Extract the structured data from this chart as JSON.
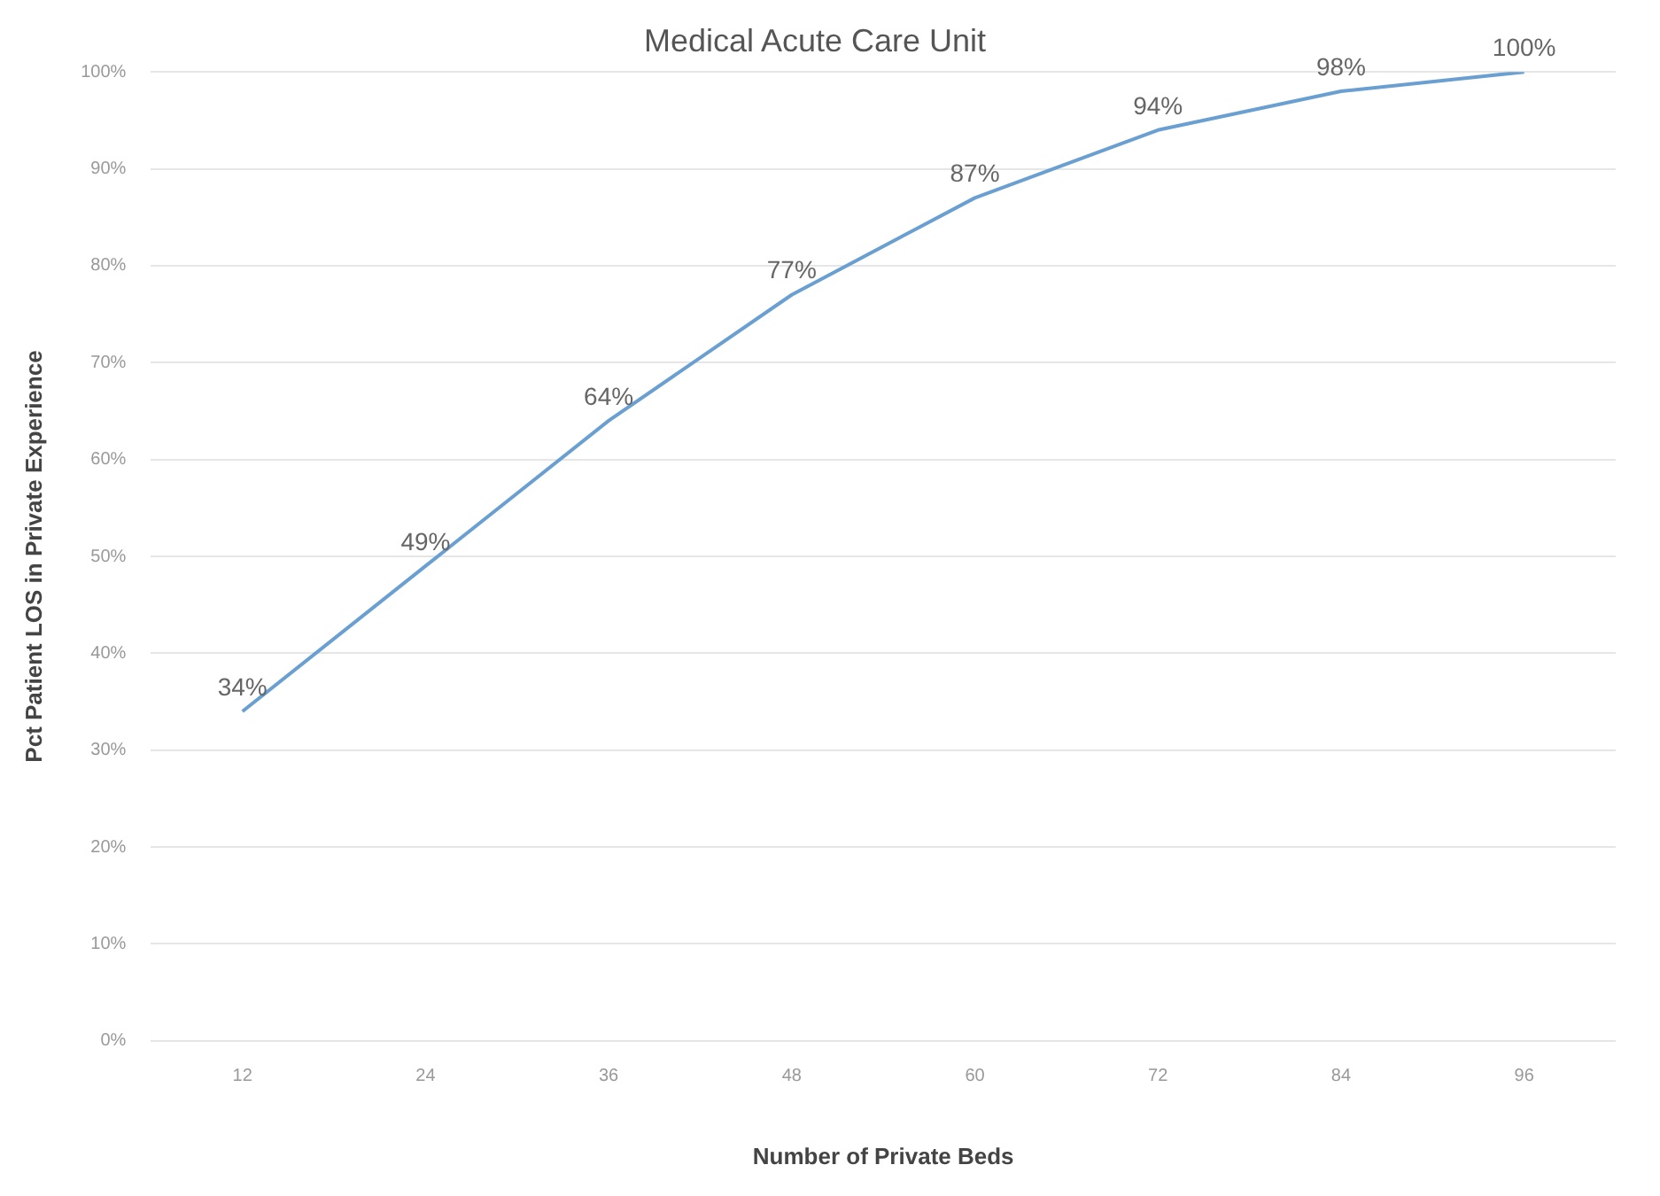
{
  "chart_data": {
    "type": "line",
    "title": "Medical Acute Care Unit",
    "xlabel": "Number of Private Beds",
    "ylabel": "Pct Patient LOS in Private Experience",
    "categories": [
      "12",
      "24",
      "36",
      "48",
      "60",
      "72",
      "84",
      "96"
    ],
    "series": [
      {
        "color": "#6a9fd2",
        "values": [
          34,
          49,
          64,
          77,
          87,
          94,
          98,
          100
        ],
        "value_labels": [
          "34%",
          "49%",
          "64%",
          "77%",
          "87%",
          "94%",
          "98%",
          "100%"
        ]
      }
    ],
    "ylim": [
      0,
      100
    ],
    "yticks": [
      {
        "value": 0,
        "label": "0%"
      },
      {
        "value": 10,
        "label": "10%"
      },
      {
        "value": 20,
        "label": "20%"
      },
      {
        "value": 30,
        "label": "30%"
      },
      {
        "value": 40,
        "label": "40%"
      },
      {
        "value": 50,
        "label": "50%"
      },
      {
        "value": 60,
        "label": "60%"
      },
      {
        "value": 70,
        "label": "70%"
      },
      {
        "value": 80,
        "label": "80%"
      },
      {
        "value": 90,
        "label": "90%"
      },
      {
        "value": 100,
        "label": "100%"
      }
    ],
    "grid": "y",
    "legend": false,
    "marker": "none",
    "line_style": "solid"
  }
}
